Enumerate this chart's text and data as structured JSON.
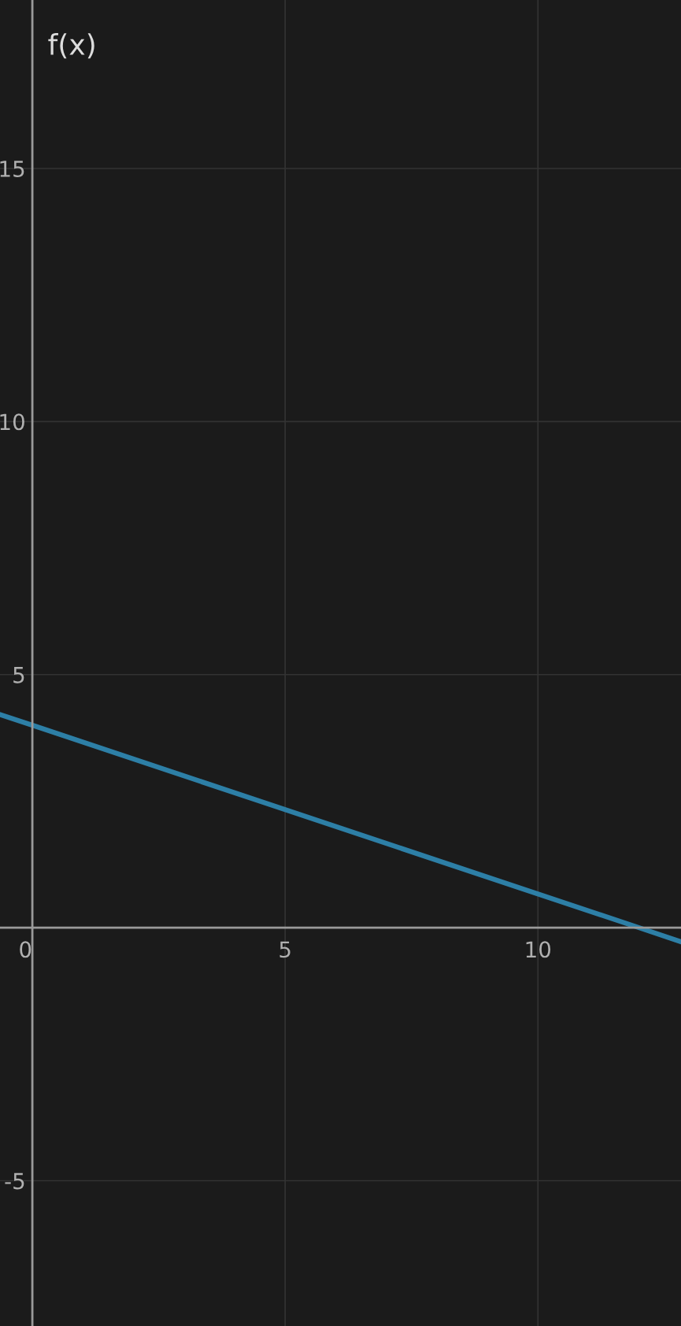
{
  "chart_data": {
    "type": "line",
    "x": [
      -0.64,
      0,
      12,
      12.83
    ],
    "series": [
      {
        "color": "#2d7fa6",
        "values": [
          4.21,
          4,
          0,
          -0.28
        ]
      }
    ],
    "xlim": [
      -0.64,
      12.83
    ],
    "ylim": [
      -7.87,
      18.33
    ],
    "xticks": [
      0,
      5,
      10
    ],
    "yticks": [
      -5,
      5,
      10,
      15
    ],
    "grid": true,
    "marker": "none",
    "line_style": "solid",
    "annotations": [
      "f(x)"
    ]
  }
}
